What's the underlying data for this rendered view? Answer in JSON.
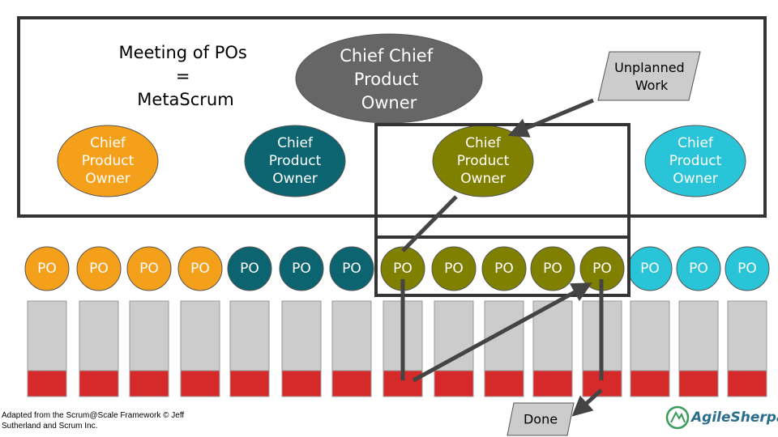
{
  "metascrum": {
    "lines": [
      "Meeting of POs",
      "=",
      "MetaScrum"
    ]
  },
  "chief_chief": {
    "lines": [
      "Chief Chief",
      "Product",
      "Owner"
    ]
  },
  "unplanned": {
    "lines": [
      "Unplanned",
      "Work"
    ]
  },
  "chiefs": [
    {
      "lines": [
        "Chief",
        "Product",
        "Owner"
      ],
      "color": "#f5a01a"
    },
    {
      "lines": [
        "Chief",
        "Product",
        "Owner"
      ],
      "color": "#0b6470"
    },
    {
      "lines": [
        "Chief",
        "Product",
        "Owner"
      ],
      "color": "#808000"
    },
    {
      "lines": [
        "Chief",
        "Product",
        "Owner"
      ],
      "color": "#2ac4d8"
    }
  ],
  "pos": [
    {
      "label": "PO",
      "color": "#f5a01a"
    },
    {
      "label": "PO",
      "color": "#f5a01a"
    },
    {
      "label": "PO",
      "color": "#f5a01a"
    },
    {
      "label": "PO",
      "color": "#f5a01a"
    },
    {
      "label": "PO",
      "color": "#0b6470"
    },
    {
      "label": "PO",
      "color": "#0b6470"
    },
    {
      "label": "PO",
      "color": "#0b6470"
    },
    {
      "label": "PO",
      "color": "#808000"
    },
    {
      "label": "PO",
      "color": "#808000"
    },
    {
      "label": "PO",
      "color": "#808000"
    },
    {
      "label": "PO",
      "color": "#808000"
    },
    {
      "label": "PO",
      "color": "#808000"
    },
    {
      "label": "PO",
      "color": "#2ac4d8"
    },
    {
      "label": "PO",
      "color": "#2ac4d8"
    },
    {
      "label": "PO",
      "color": "#2ac4d8"
    }
  ],
  "done": "Done",
  "footer": {
    "lines": [
      "Adapted from the Scrum@Scale Framework © Jeff",
      "Sutherland and Scrum Inc."
    ]
  },
  "logo": "AgileSherpas"
}
